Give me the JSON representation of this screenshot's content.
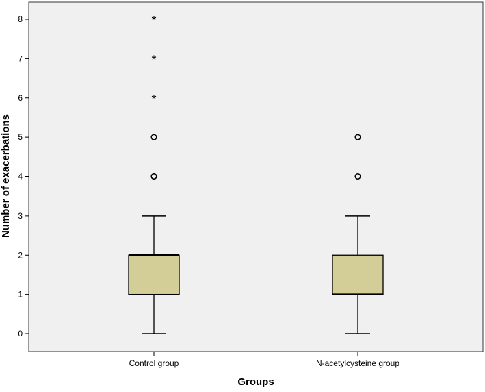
{
  "chart_data": {
    "type": "boxplot",
    "xlabel": "Groups",
    "ylabel": "Number of exacerbations",
    "ylim": [
      -0.5,
      8.5
    ],
    "yticks": [
      0,
      1,
      2,
      3,
      4,
      5,
      6,
      7,
      8
    ],
    "categories": [
      "Control group",
      "N-acetylcysteine group"
    ],
    "boxes": [
      {
        "category": "Control group",
        "min": 0,
        "q1": 1,
        "median": 2,
        "q3": 2,
        "max": 3,
        "outliers": [
          4,
          4,
          5
        ],
        "extremes": [
          6,
          7,
          8
        ]
      },
      {
        "category": "N-acetylcysteine group",
        "min": 0,
        "q1": 1,
        "median": 1,
        "q3": 2,
        "max": 3,
        "outliers": [
          4,
          5
        ],
        "extremes": []
      }
    ],
    "grid": false,
    "colors": {
      "plot_background": "#f0f0f0",
      "box_fill": "#d3ce98",
      "stroke": "#000000"
    }
  }
}
